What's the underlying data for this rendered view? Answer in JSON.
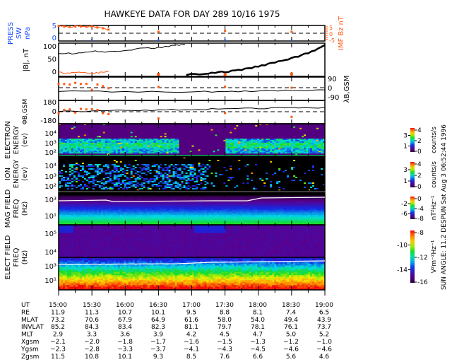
{
  "title": "HAWKEYE DATA FOR DAY 289 10/16 1975",
  "side_note": "SUN ANGLE:  11.2 DESPUN Sat Aug  3 06:52:44 1996",
  "colors": {
    "sw_axis": "#1a4cff",
    "imf": "#ff5a14",
    "line": "#000000"
  },
  "chart_data": [
    {
      "type": "line",
      "name": "solar-wind-pressure",
      "ylabel_lines": [
        "PRESS",
        "SW",
        "nPa"
      ],
      "right_label": "IMF Bz nT",
      "yticks": [
        "5",
        "0"
      ],
      "right_ticks": [
        "5",
        "0",
        "-5"
      ],
      "ylim": [
        0,
        6
      ],
      "imf_points": {
        "x": [
          "15:00",
          "15:05",
          "15:10",
          "15:15",
          "15:20",
          "15:25",
          "15:30",
          "15:35",
          "15:40",
          "15:45",
          "16:30",
          "17:30",
          "18:30"
        ],
        "y": [
          5.8,
          5.6,
          5.4,
          5.7,
          5.6,
          5.5,
          5.7,
          5.2,
          4.9,
          4.4,
          3.6,
          3.9,
          3.6
        ]
      }
    },
    {
      "type": "line",
      "name": "b-magnitude",
      "ylabel": "|B|, nT",
      "yticks": [
        "100",
        "50",
        "0"
      ],
      "ylim": [
        -5,
        105
      ],
      "series": [
        {
          "name": "|B| (pass 1)",
          "x": [
            "15:00",
            "15:15",
            "15:30",
            "15:45",
            "16:00",
            "16:15",
            "16:30",
            "16:45",
            "16:54"
          ],
          "y": [
            72,
            71,
            78,
            76,
            80,
            88,
            90,
            98,
            100
          ]
        },
        {
          "name": "|B| (pass 2)",
          "x": [
            "16:55",
            "17:15",
            "17:30",
            "17:45",
            "18:00",
            "18:15",
            "18:30",
            "18:45",
            "19:00"
          ],
          "y": [
            0,
            4,
            10,
            17,
            28,
            40,
            55,
            72,
            98
          ]
        },
        {
          "name": "IMF",
          "x": [
            "15:00",
            "15:10",
            "15:20",
            "15:30",
            "15:40",
            "15:45",
            "16:30",
            "17:30",
            "18:30"
          ],
          "y": [
            8,
            5,
            9,
            4,
            10,
            12,
            2,
            1,
            3
          ]
        }
      ]
    },
    {
      "type": "line",
      "name": "lambda-b-gsm",
      "ylabel": "λB,GSM",
      "yticks": [
        "90",
        "0",
        "-90"
      ],
      "ylim": [
        -110,
        110
      ],
      "series": [
        {
          "name": "λ",
          "x": [
            "15:00",
            "16:00",
            "17:00",
            "17:30",
            "18:00",
            "18:30",
            "19:00"
          ],
          "y": [
            -25,
            -27,
            -28,
            -27,
            -22,
            -17,
            -12
          ]
        }
      ],
      "imf_points": {
        "x": [
          "15:00",
          "15:05",
          "15:10",
          "15:15",
          "15:20",
          "15:25",
          "15:30",
          "15:35",
          "15:40",
          "15:45",
          "16:30",
          "17:30",
          "18:30"
        ],
        "y": [
          45,
          45,
          40,
          55,
          45,
          47,
          -10,
          40,
          25,
          5,
          18,
          20,
          10
        ]
      }
    },
    {
      "type": "line",
      "name": "phi-b-gsm",
      "ylabel": "ΦB,GSM",
      "yticks": [
        "180",
        "0",
        "-180"
      ],
      "ylim": [
        -220,
        220
      ],
      "series": [
        {
          "name": "Φ",
          "x": [
            "15:00",
            "15:30",
            "16:00",
            "16:30",
            "17:00",
            "17:30",
            "18:00",
            "18:30",
            "19:00"
          ],
          "y": [
            10,
            20,
            30,
            40,
            50,
            60,
            70,
            80,
            85
          ]
        }
      ],
      "imf_points": {
        "x": [
          "15:00",
          "15:05",
          "15:10",
          "15:15",
          "15:20",
          "15:25",
          "15:30",
          "15:35",
          "15:40",
          "15:45",
          "16:30",
          "17:30",
          "18:30"
        ],
        "y": [
          -20,
          40,
          50,
          -10,
          60,
          50,
          55,
          40,
          -20,
          -40,
          -120,
          -20,
          -90
        ]
      }
    },
    {
      "type": "heatmap",
      "name": "electron-energy",
      "ylabel_lines": [
        "ELECTRON",
        "ENERGY",
        "(ev)"
      ],
      "yticks": [
        "10⁴",
        "10³",
        "10²"
      ],
      "colorbar_ticks": [
        "4",
        "3",
        "2",
        "1",
        "0"
      ],
      "colorbar_label": "counts/s"
    },
    {
      "type": "heatmap",
      "name": "ion-energy",
      "ylabel_lines": [
        "ION",
        "ENERGY",
        "(ev)"
      ],
      "yticks": [
        "10⁴",
        "10³",
        "10²"
      ],
      "colorbar_ticks": [
        "4",
        "3",
        "2",
        "1",
        "0"
      ],
      "colorbar_label": "counts/s"
    },
    {
      "type": "heatmap",
      "name": "mag-field",
      "ylabel_lines": [
        "MAG FIELD",
        "FREQ",
        "(Hz)"
      ],
      "yticks": [
        "10³",
        "10¹"
      ],
      "colorbar_ticks": [
        "0",
        "-2",
        "-4",
        "-6",
        "-8"
      ],
      "colorbar_label": "nT²Hz⁻¹"
    },
    {
      "type": "heatmap",
      "name": "elect-field",
      "ylabel_lines": [
        "ELECT FIELD",
        "FREQ",
        "(Hz)"
      ],
      "yticks": [
        "10⁵",
        "10⁴",
        "10³",
        "10¹"
      ],
      "colorbar_ticks": [
        "-8",
        "-10",
        "-12",
        "-14",
        "-16"
      ],
      "colorbar_label": "V²m⁻²Hz⁻¹"
    }
  ],
  "ephemeris": {
    "columns": [
      "15:00",
      "15:30",
      "16:00",
      "16:30",
      "17:00",
      "17:30",
      "18:00",
      "18:30",
      "19:00"
    ],
    "rows": [
      {
        "label": "UT",
        "values": [
          "15:00",
          "15:30",
          "16:00",
          "16:30",
          "17:00",
          "17:30",
          "18:00",
          "18:30",
          "19:00"
        ]
      },
      {
        "label": "RE",
        "values": [
          "11.9",
          "11.3",
          "10.7",
          "10.1",
          "9.5",
          "8.8",
          "8.1",
          "7.4",
          "6.5"
        ]
      },
      {
        "label": "MLAT",
        "values": [
          "73.2",
          "70.6",
          "67.9",
          "64.9",
          "61.6",
          "58.0",
          "54.0",
          "49.4",
          "43.9"
        ]
      },
      {
        "label": "INVLAT",
        "values": [
          "85.2",
          "84.3",
          "83.4",
          "82.3",
          "81.1",
          "79.7",
          "78.1",
          "76.1",
          "73.7"
        ]
      },
      {
        "label": "MLT",
        "values": [
          "2.9",
          "3.3",
          "3.6",
          "3.9",
          "4.2",
          "4.5",
          "4.7",
          "5.0",
          "5.2"
        ]
      },
      {
        "label": "Xgsm",
        "values": [
          "−2.1",
          "−2.0",
          "−1.8",
          "−1.7",
          "−1.6",
          "−1.5",
          "−1.3",
          "−1.2",
          "−1.0"
        ]
      },
      {
        "label": "Ygsm",
        "values": [
          "−2.3",
          "−2.8",
          "−3.3",
          "−3.7",
          "−4.1",
          "−4.3",
          "−4.5",
          "−4.6",
          "−4.6"
        ]
      },
      {
        "label": "Zgsm",
        "values": [
          "11.5",
          "10.8",
          "10.1",
          "9.3",
          "8.5",
          "7.6",
          "6.6",
          "5.6",
          "4.6"
        ]
      }
    ]
  }
}
